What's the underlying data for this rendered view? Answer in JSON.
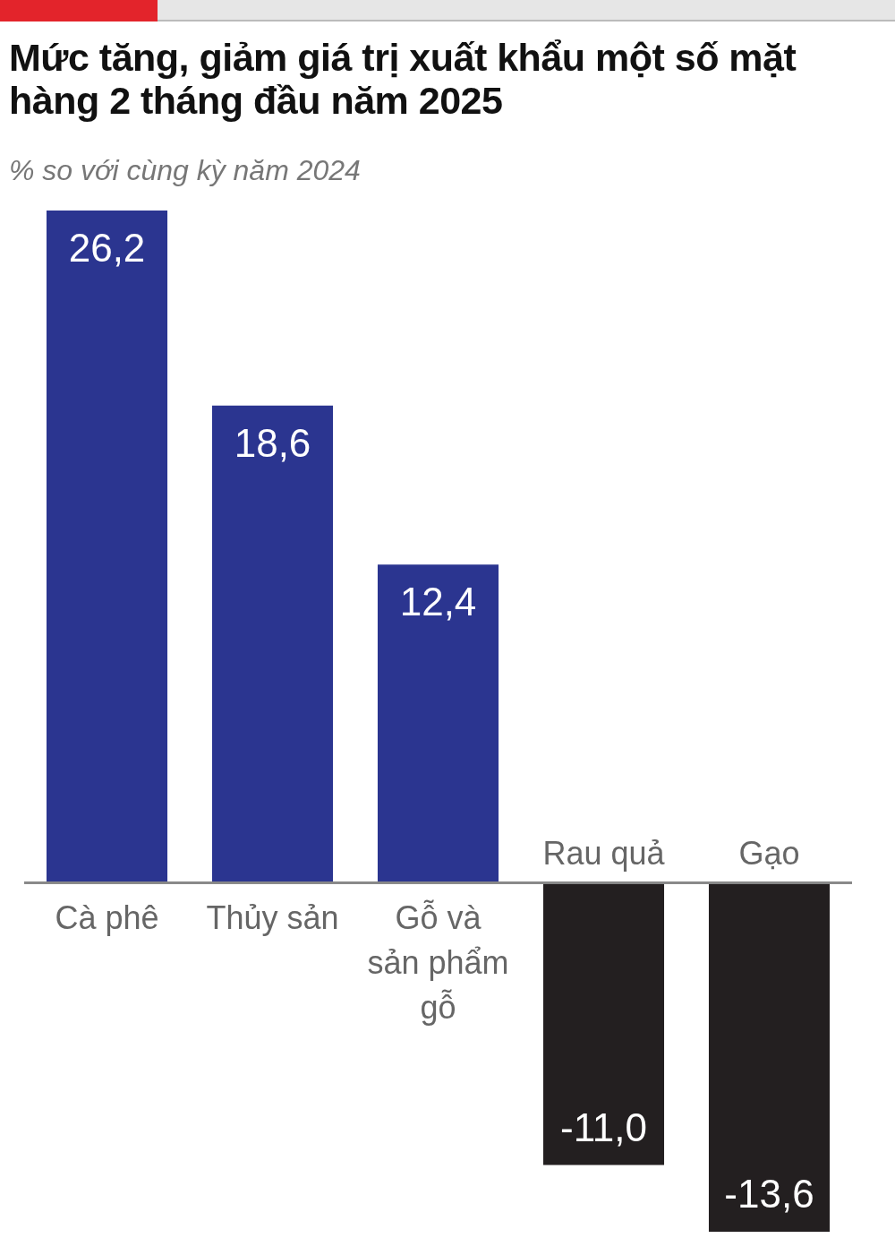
{
  "chart_data": {
    "type": "bar",
    "title": "Mức tăng, giảm giá trị xuất khẩu một số mặt hàng 2 tháng đầu năm 2025",
    "subtitle": "% so với cùng kỳ năm 2024",
    "categories": [
      "Cà phê",
      "Thủy sản",
      "Gỗ và sản phẩm gỗ",
      "Rau quả",
      "Gạo"
    ],
    "values": [
      26.2,
      18.6,
      12.4,
      -11.0,
      -13.6
    ],
    "colors": [
      "#2b3590",
      "#2b3590",
      "#2b3590",
      "#231f20",
      "#231f20"
    ],
    "value_labels": [
      "26,2",
      "18,6",
      "12,4",
      "-11,0",
      "-13,6"
    ]
  }
}
